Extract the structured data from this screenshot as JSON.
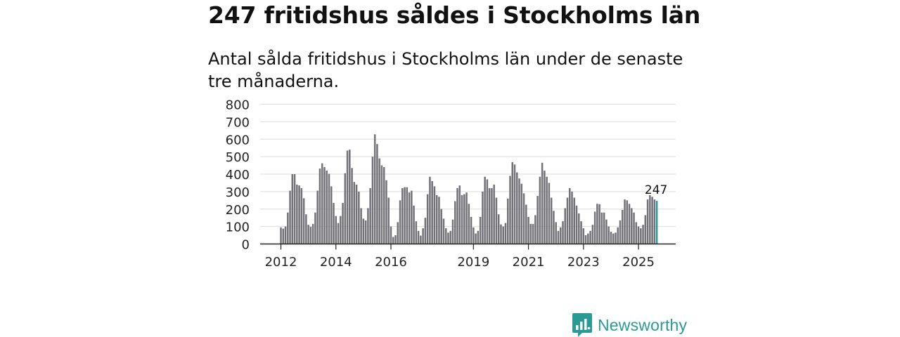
{
  "title": "247 fritidshus såldes i Stockholms län",
  "subtitle": "Antal sålda fritidshus i Stockholms län under de senaste tre månaderna.",
  "brand": {
    "name": "Newsworthy",
    "color": "#2a9a96"
  },
  "chart_data": {
    "type": "bar",
    "ylim": [
      0,
      800
    ],
    "yticks": [
      0,
      100,
      200,
      300,
      400,
      500,
      600,
      700,
      800
    ],
    "xticks": [
      {
        "label": "2012",
        "index": 0
      },
      {
        "label": "2014",
        "index": 24
      },
      {
        "label": "2016",
        "index": 48
      },
      {
        "label": "2019",
        "index": 84
      },
      {
        "label": "2021",
        "index": 108
      },
      {
        "label": "2023",
        "index": 132
      },
      {
        "label": "2025",
        "index": 156
      }
    ],
    "start": "2012-01",
    "end": "2025-09",
    "grid": true,
    "bar_color": "#727278",
    "highlight_color": "#2a9a96",
    "annotation": {
      "text": "247",
      "index": 164
    },
    "values": [
      95,
      88,
      100,
      180,
      305,
      400,
      400,
      340,
      335,
      320,
      262,
      170,
      110,
      98,
      115,
      180,
      305,
      432,
      462,
      440,
      420,
      402,
      330,
      235,
      160,
      120,
      160,
      235,
      405,
      535,
      540,
      435,
      355,
      340,
      300,
      205,
      145,
      135,
      205,
      320,
      500,
      628,
      572,
      490,
      450,
      440,
      365,
      265,
      100,
      40,
      50,
      125,
      250,
      320,
      325,
      325,
      295,
      305,
      220,
      130,
      75,
      48,
      90,
      150,
      285,
      385,
      360,
      330,
      280,
      270,
      200,
      145,
      90,
      65,
      75,
      140,
      245,
      320,
      335,
      280,
      285,
      295,
      230,
      155,
      95,
      60,
      75,
      155,
      300,
      385,
      370,
      320,
      320,
      340,
      265,
      170,
      112,
      100,
      120,
      260,
      390,
      468,
      455,
      410,
      375,
      345,
      290,
      225,
      155,
      115,
      115,
      165,
      275,
      385,
      465,
      420,
      385,
      350,
      265,
      190,
      125,
      75,
      95,
      130,
      205,
      265,
      320,
      300,
      265,
      220,
      175,
      130,
      90,
      50,
      60,
      75,
      110,
      185,
      230,
      228,
      180,
      180,
      140,
      100,
      70,
      60,
      65,
      95,
      135,
      195,
      255,
      250,
      230,
      205,
      180,
      125,
      100,
      90,
      110,
      165,
      255,
      280,
      270,
      255,
      247
    ]
  }
}
